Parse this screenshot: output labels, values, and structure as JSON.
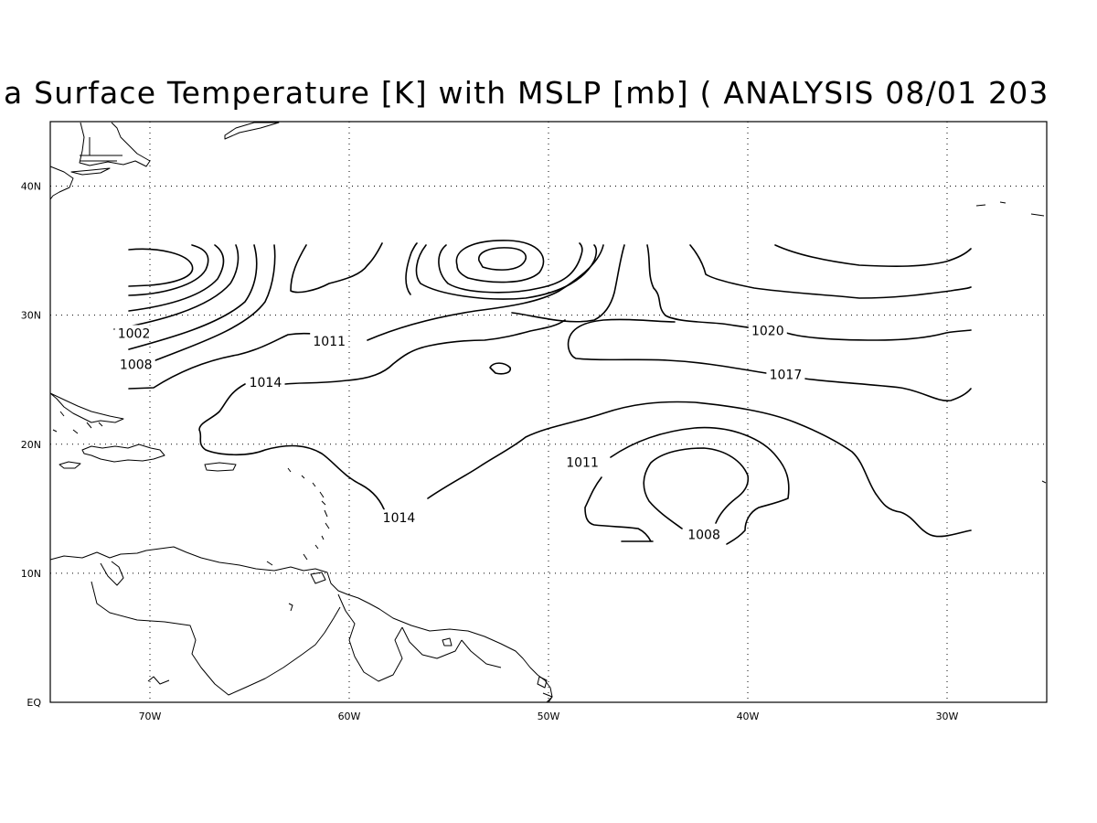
{
  "title": "a Surface Temperature [K] with MSLP [mb] ( ANALYSIS 08/01 203",
  "map": {
    "lon_range": [
      -75,
      -25
    ],
    "lat_range": [
      0,
      45
    ],
    "lon_ticks": [
      {
        "lon": -70,
        "label": "70W"
      },
      {
        "lon": -60,
        "label": "60W"
      },
      {
        "lon": -50,
        "label": "50W"
      },
      {
        "lon": -40,
        "label": "40W"
      },
      {
        "lon": -30,
        "label": "30W"
      }
    ],
    "lat_ticks": [
      {
        "lat": 0,
        "label": "EQ"
      },
      {
        "lat": 10,
        "label": "10N"
      },
      {
        "lat": 20,
        "label": "20N"
      },
      {
        "lat": 30,
        "label": "30N"
      },
      {
        "lat": 40,
        "label": "40N"
      }
    ],
    "gridlines": "dotted",
    "contour_color": "#000000",
    "background": "#ffffff",
    "contour_labels": [
      {
        "text": "1002",
        "lon": -70.8,
        "lat": 28.6
      },
      {
        "text": "1008",
        "lon": -70.7,
        "lat": 26.2
      },
      {
        "text": "1011",
        "lon": -61.0,
        "lat": 28.0
      },
      {
        "text": "1014",
        "lon": -64.2,
        "lat": 24.8
      },
      {
        "text": "1020",
        "lon": -39.0,
        "lat": 28.8
      },
      {
        "text": "1017",
        "lon": -38.1,
        "lat": 25.4
      },
      {
        "text": "1011",
        "lon": -48.3,
        "lat": 18.6
      },
      {
        "text": "1014",
        "lon": -57.5,
        "lat": 14.3
      },
      {
        "text": "1008",
        "lon": -42.2,
        "lat": 13.0
      }
    ]
  }
}
